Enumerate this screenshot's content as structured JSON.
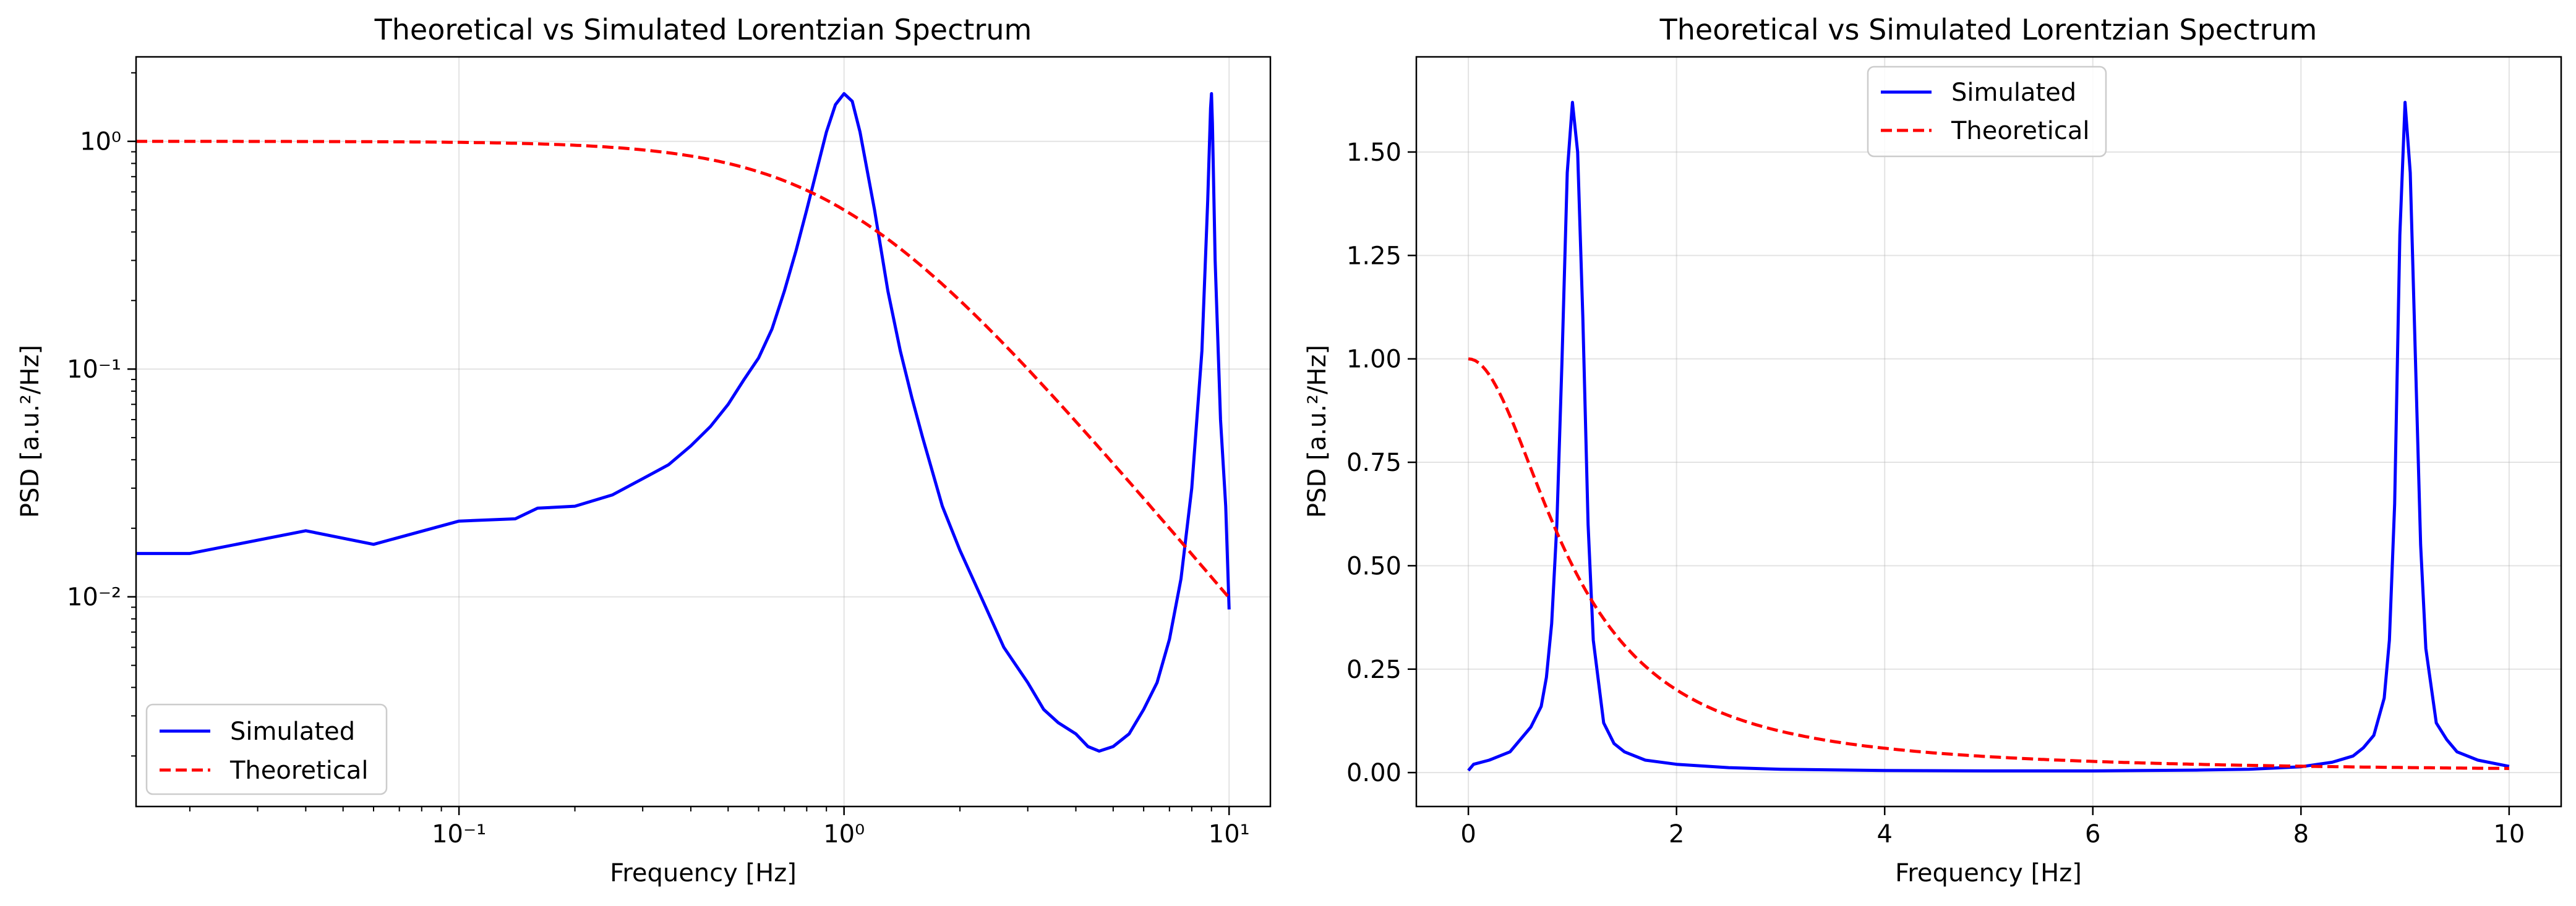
{
  "chart_data": [
    {
      "type": "line",
      "title": "Theoretical vs Simulated Lorentzian Spectrum",
      "xlabel": "Frequency [Hz]",
      "ylabel": "PSD [a.u.²/Hz]",
      "xscale": "log",
      "yscale": "log",
      "xlim": [
        0.0145,
        12.8
      ],
      "ylim": [
        0.0012,
        2.35
      ],
      "xticks": [
        {
          "value": 0.1,
          "label": "10⁻¹"
        },
        {
          "value": 1,
          "label": "10⁰"
        },
        {
          "value": 10,
          "label": "10¹"
        }
      ],
      "yticks": [
        {
          "value": 0.01,
          "label": "10⁻²"
        },
        {
          "value": 0.1,
          "label": "10⁻¹"
        },
        {
          "value": 1,
          "label": "10⁰"
        }
      ],
      "grid": true,
      "legend_position": "lower-left",
      "series": [
        {
          "name": "Simulated",
          "color": "#0000ff",
          "style": "solid",
          "x": [
            0.0145,
            0.02,
            0.04,
            0.06,
            0.1,
            0.14,
            0.16,
            0.2,
            0.25,
            0.3,
            0.35,
            0.4,
            0.45,
            0.5,
            0.55,
            0.6,
            0.65,
            0.7,
            0.75,
            0.8,
            0.85,
            0.9,
            0.95,
            1.0,
            1.05,
            1.1,
            1.2,
            1.3,
            1.4,
            1.5,
            1.6,
            1.8,
            2.0,
            2.3,
            2.6,
            3.0,
            3.3,
            3.6,
            4.0,
            4.3,
            4.6,
            5.0,
            5.5,
            6.0,
            6.5,
            7.0,
            7.5,
            8.0,
            8.5,
            8.8,
            8.95,
            9.0,
            9.05,
            9.2,
            9.5,
            9.8,
            10.0
          ],
          "y": [
            0.0155,
            0.0155,
            0.0195,
            0.017,
            0.0215,
            0.022,
            0.0245,
            0.025,
            0.028,
            0.033,
            0.038,
            0.046,
            0.056,
            0.07,
            0.09,
            0.112,
            0.15,
            0.22,
            0.33,
            0.5,
            0.75,
            1.1,
            1.45,
            1.62,
            1.5,
            1.1,
            0.5,
            0.22,
            0.12,
            0.075,
            0.05,
            0.025,
            0.016,
            0.0095,
            0.006,
            0.0042,
            0.0032,
            0.0028,
            0.0025,
            0.0022,
            0.0021,
            0.0022,
            0.0025,
            0.0032,
            0.0042,
            0.0065,
            0.012,
            0.03,
            0.12,
            0.55,
            1.4,
            1.62,
            1.2,
            0.3,
            0.06,
            0.025,
            0.0088
          ]
        },
        {
          "name": "Theoretical",
          "color": "#ff0000",
          "style": "dashed",
          "model": "lorentzian",
          "amplitude": 1,
          "gamma": 1,
          "x_range": [
            0.0145,
            10
          ]
        }
      ]
    },
    {
      "type": "line",
      "title": "Theoretical vs Simulated Lorentzian Spectrum",
      "xlabel": "Frequency [Hz]",
      "ylabel": "PSD [a.u.²/Hz]",
      "xscale": "linear",
      "yscale": "linear",
      "xlim": [
        -0.5,
        10.5
      ],
      "ylim": [
        -0.082,
        1.73
      ],
      "xticks": [
        {
          "value": 0,
          "label": "0"
        },
        {
          "value": 2,
          "label": "2"
        },
        {
          "value": 4,
          "label": "4"
        },
        {
          "value": 6,
          "label": "6"
        },
        {
          "value": 8,
          "label": "8"
        },
        {
          "value": 10,
          "label": "10"
        }
      ],
      "yticks": [
        {
          "value": 0,
          "label": "0.00"
        },
        {
          "value": 0.25,
          "label": "0.25"
        },
        {
          "value": 0.5,
          "label": "0.50"
        },
        {
          "value": 0.75,
          "label": "0.75"
        },
        {
          "value": 1.0,
          "label": "1.00"
        },
        {
          "value": 1.25,
          "label": "1.25"
        },
        {
          "value": 1.5,
          "label": "1.50"
        }
      ],
      "grid": true,
      "legend_position": "upper-center",
      "series": [
        {
          "name": "Simulated",
          "color": "#0000ff",
          "style": "solid",
          "x": [
            0.0,
            0.05,
            0.2,
            0.4,
            0.6,
            0.7,
            0.75,
            0.8,
            0.85,
            0.9,
            0.95,
            1.0,
            1.05,
            1.1,
            1.15,
            1.2,
            1.3,
            1.4,
            1.5,
            1.7,
            2.0,
            2.5,
            3.0,
            4.0,
            5.0,
            6.0,
            7.0,
            7.5,
            8.0,
            8.3,
            8.5,
            8.6,
            8.7,
            8.8,
            8.85,
            8.9,
            8.95,
            9.0,
            9.05,
            9.1,
            9.15,
            9.2,
            9.3,
            9.4,
            9.5,
            9.7,
            10.0
          ],
          "y": [
            0.005,
            0.02,
            0.03,
            0.05,
            0.11,
            0.16,
            0.23,
            0.36,
            0.6,
            1.0,
            1.45,
            1.62,
            1.5,
            1.1,
            0.6,
            0.32,
            0.12,
            0.07,
            0.05,
            0.03,
            0.02,
            0.012,
            0.008,
            0.005,
            0.004,
            0.004,
            0.006,
            0.008,
            0.014,
            0.025,
            0.04,
            0.06,
            0.09,
            0.18,
            0.32,
            0.65,
            1.3,
            1.62,
            1.45,
            1.0,
            0.55,
            0.3,
            0.12,
            0.08,
            0.05,
            0.03,
            0.015
          ]
        },
        {
          "name": "Theoretical",
          "color": "#ff0000",
          "style": "dashed",
          "model": "lorentzian",
          "amplitude": 1,
          "gamma": 1,
          "x_range": [
            0,
            10
          ]
        }
      ]
    }
  ]
}
